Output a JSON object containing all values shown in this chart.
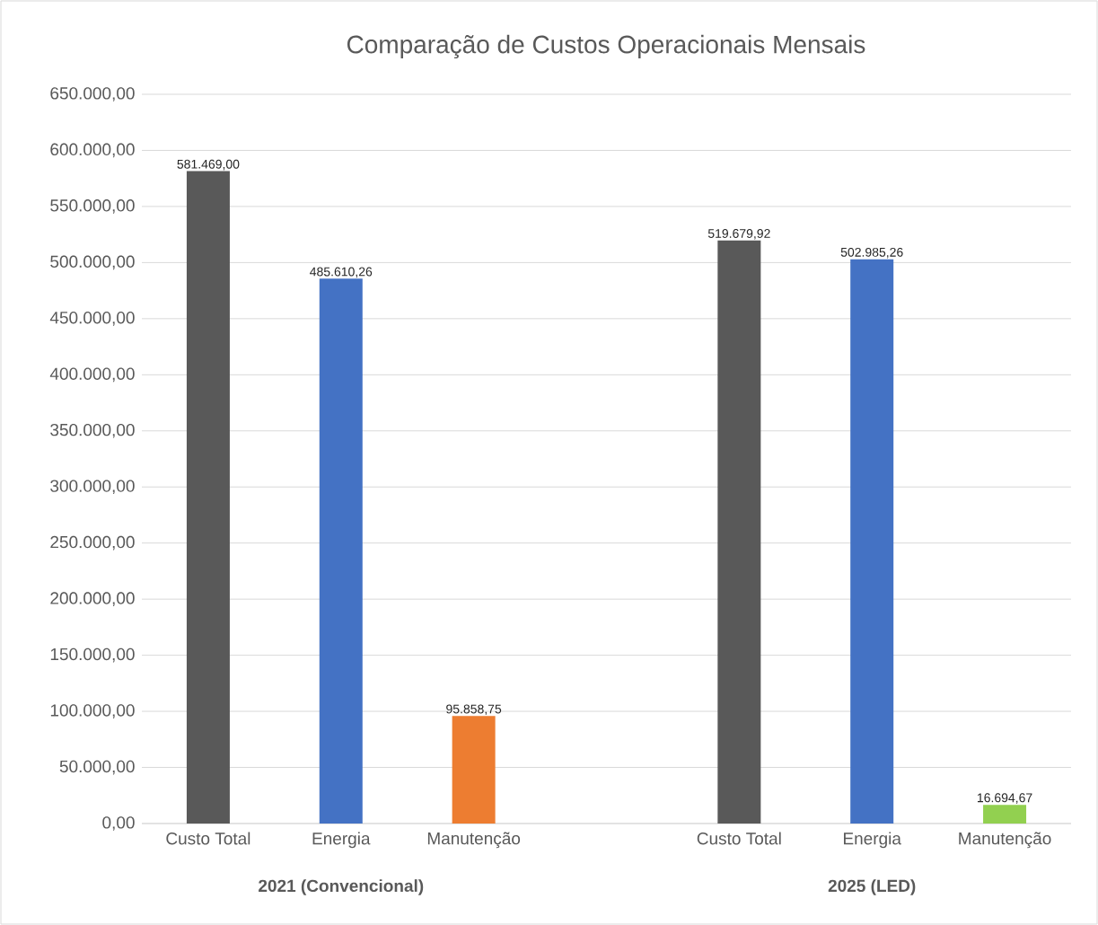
{
  "chart_data": {
    "type": "bar",
    "title": "Comparação de Custos Operacionais Mensais",
    "categories": [
      "Custo Total",
      "Energia",
      "Manutenção",
      null,
      "Custo Total",
      "Energia",
      "Manutenção"
    ],
    "values": [
      581469.0,
      485610.26,
      95858.75,
      null,
      519679.92,
      502985.26,
      16694.67
    ],
    "value_labels": [
      "581.469,00",
      "485.610,26",
      "95.858,75",
      null,
      "519.679,92",
      "502.985,26",
      "16.694,67"
    ],
    "colors": [
      "#595959",
      "#4472c4",
      "#ed7d31",
      null,
      "#595959",
      "#4472c4",
      "#92d050"
    ],
    "annotations": [
      "2021 (Convencional)",
      "2025 (LED)"
    ],
    "ylim": [
      0,
      650000
    ],
    "yticks": [
      {
        "value": 0,
        "label": "0,00"
      },
      {
        "value": 50000,
        "label": "50.000,00"
      },
      {
        "value": 100000,
        "label": "100.000,00"
      },
      {
        "value": 150000,
        "label": "150.000,00"
      },
      {
        "value": 200000,
        "label": "200.000,00"
      },
      {
        "value": 250000,
        "label": "250.000,00"
      },
      {
        "value": 300000,
        "label": "300.000,00"
      },
      {
        "value": 350000,
        "label": "350.000,00"
      },
      {
        "value": 400000,
        "label": "400.000,00"
      },
      {
        "value": 450000,
        "label": "450.000,00"
      },
      {
        "value": 500000,
        "label": "500.000,00"
      },
      {
        "value": 550000,
        "label": "550.000,00"
      },
      {
        "value": 600000,
        "label": "600.000,00"
      },
      {
        "value": 650000,
        "label": "650.000,00"
      }
    ],
    "grid": "y"
  }
}
